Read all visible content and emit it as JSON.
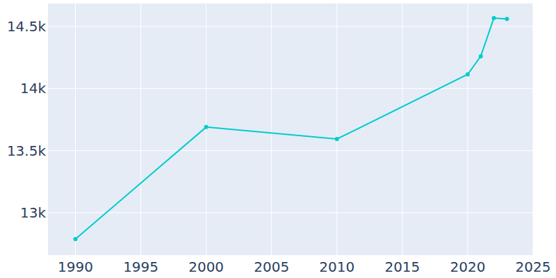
{
  "chart_data": {
    "type": "line",
    "x": [
      1990,
      2000,
      2010,
      2020,
      2021,
      2022,
      2023
    ],
    "values": [
      12787,
      13689,
      13593,
      14114,
      14260,
      14567,
      14561
    ],
    "color": "#00cccc",
    "marker": "circle",
    "grid": true,
    "xlim": [
      1987.9,
      2025
    ],
    "xticks": [
      1990,
      1995,
      2000,
      2005,
      2010,
      2015,
      2020,
      2025
    ],
    "ylim": [
      12658,
      14685
    ],
    "yticks": [
      {
        "value": 13000,
        "label": "13k"
      },
      {
        "value": 13500,
        "label": "13.5k"
      },
      {
        "value": 14000,
        "label": "14k"
      },
      {
        "value": 14500,
        "label": "14.5k"
      }
    ]
  }
}
